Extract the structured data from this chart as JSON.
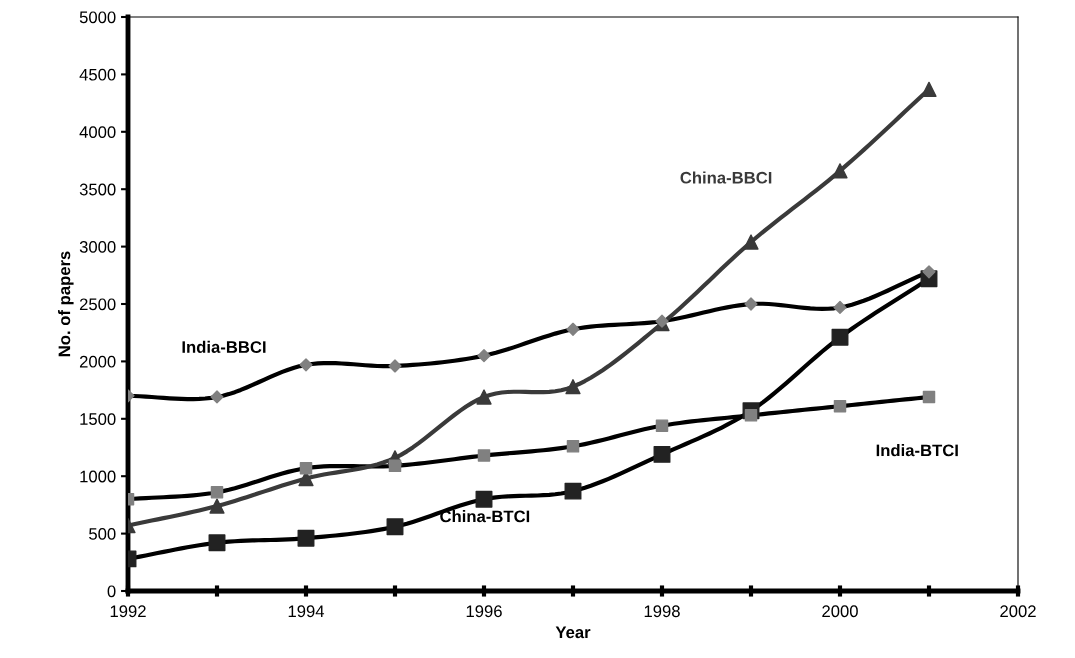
{
  "chart_data": {
    "type": "line",
    "xlabel": "Year",
    "ylabel": "No. of papers",
    "x": [
      1992,
      1993,
      1994,
      1995,
      1996,
      1997,
      1998,
      1999,
      2000,
      2001
    ],
    "xlim": [
      1992,
      2002
    ],
    "xticks": [
      1992,
      {
        "value": 1993,
        "label": null
      },
      1994,
      {
        "value": 1995,
        "label": null
      },
      1996,
      {
        "value": 1997,
        "label": null
      },
      1998,
      {
        "value": 1999,
        "label": null
      },
      2000,
      {
        "value": 2001,
        "label": null
      },
      2002
    ],
    "ylim": [
      0,
      5000
    ],
    "yticks": [
      0,
      500,
      1000,
      1500,
      2000,
      2500,
      3000,
      3500,
      4000,
      4500,
      5000
    ],
    "grid": false,
    "legend": false,
    "series": [
      {
        "name": "India-BBCI",
        "color": "#000000",
        "marker": "diamond",
        "colors": [
          "#808080",
          "#808080",
          "#808080",
          "#808080",
          "#808080",
          "#808080",
          "#808080",
          "#808080",
          "#808080",
          "#808080"
        ],
        "values": [
          1700,
          1690,
          1970,
          1960,
          2050,
          2280,
          2350,
          2500,
          2470,
          2780
        ]
      },
      {
        "name": "India-BTCI",
        "color": "#000000",
        "marker": "square",
        "colors": [
          "#808080",
          "#808080",
          "#808080",
          "#808080",
          "#808080",
          "#808080",
          "#808080",
          "#808080",
          "#808080",
          "#808080"
        ],
        "values": [
          800,
          860,
          1070,
          1090,
          1180,
          1260,
          1440,
          1530,
          1610,
          1690
        ]
      },
      {
        "name": "China-BBCI",
        "color": "#3a3a3a",
        "marker": "triangle",
        "values": [
          570,
          740,
          980,
          1160,
          1690,
          1780,
          2330,
          3040,
          3660,
          4370
        ]
      },
      {
        "name": "China-BTCI",
        "color": "#000000",
        "marker": "square",
        "colors": [
          "#222222",
          "#222222",
          "#222222",
          "#222222",
          "#222222",
          "#222222",
          "#222222",
          "#222222",
          "#222222",
          "#222222"
        ],
        "values": [
          280,
          420,
          460,
          560,
          800,
          870,
          1190,
          1570,
          2210,
          2720
        ]
      }
    ]
  }
}
